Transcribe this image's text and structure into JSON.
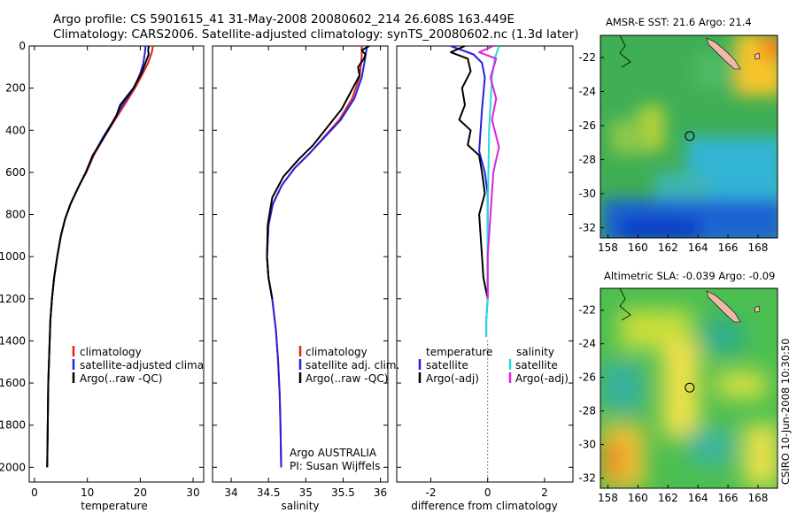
{
  "header": {
    "title_line1": "Argo profile: CS 5901615_41 31-May-2008 20080602_214 26.608S 163.449E",
    "title_line2": "Climatology: CARS2006. Satellite-adjusted climatology: synTS_20080602.nc (1.3d later)"
  },
  "footer": {
    "stamp": "CSIRO 10-Jun-2008 10:30:50"
  },
  "annotation": {
    "line1": "Argo AUSTRALIA",
    "line2": "PI: Susan Wijffels"
  },
  "colors": {
    "climatology": "#dd2222",
    "satellite": "#2222dd",
    "argo": "#000000",
    "salinity_sat": "#22dddd",
    "salinity_argo": "#dd22dd"
  },
  "chart_data": [
    {
      "type": "line",
      "xlabel": "temperature",
      "xlim": [
        -1,
        32
      ],
      "ylim": [
        0,
        2070
      ],
      "xticks": [
        0,
        10,
        20,
        30
      ],
      "yticks": [
        0,
        200,
        400,
        600,
        800,
        1000,
        1200,
        1400,
        1600,
        1800,
        2000
      ],
      "legend": {
        "placement": "bottom-left",
        "entries": [
          "climatology",
          "satellite-adjusted climatology",
          "Argo(..raw -QC)"
        ]
      },
      "series": [
        {
          "name": "climatology",
          "color": "#dd2222",
          "x": [
            22.4,
            22.2,
            21.5,
            20.5,
            19.0,
            17.0,
            15.0,
            13.0,
            11.2,
            9.8,
            8.5,
            6.8,
            5.8,
            5.0,
            4.3,
            3.7,
            3.3,
            3.0,
            2.8,
            2.6,
            2.5,
            2.4
          ],
          "y": [
            0,
            30,
            80,
            130,
            200,
            280,
            360,
            440,
            520,
            600,
            660,
            750,
            820,
            900,
            1000,
            1100,
            1200,
            1300,
            1450,
            1600,
            1800,
            2000
          ]
        },
        {
          "name": "satellite-adjusted climatology",
          "color": "#2222dd",
          "x": [
            21.0,
            20.9,
            20.6,
            20.0,
            18.8,
            16.6,
            14.8,
            12.8,
            11.1,
            9.7,
            8.5,
            6.8,
            5.8,
            5.0,
            4.3,
            3.7,
            3.3,
            3.0,
            2.8,
            2.6,
            2.5,
            2.4
          ],
          "y": [
            0,
            30,
            80,
            130,
            200,
            280,
            360,
            440,
            520,
            600,
            660,
            750,
            820,
            900,
            1000,
            1100,
            1200,
            1300,
            1450,
            1600,
            1800,
            2000
          ]
        },
        {
          "name": "Argo(..raw -QC)",
          "color": "#000000",
          "x": [
            21.6,
            21.5,
            21.6,
            21.0,
            20.2,
            18.7,
            16.2,
            15.5,
            13.0,
            11.0,
            9.7,
            8.5,
            6.8,
            5.8,
            5.0,
            4.3,
            3.7,
            3.3,
            3.0,
            2.8,
            2.6,
            2.5,
            2.4
          ],
          "y": [
            0,
            20,
            40,
            80,
            130,
            200,
            280,
            330,
            440,
            520,
            600,
            660,
            750,
            820,
            900,
            1000,
            1100,
            1200,
            1300,
            1450,
            1600,
            1800,
            2000
          ]
        }
      ]
    },
    {
      "type": "line",
      "xlabel": "salinity",
      "xlim": [
        33.75,
        36.1
      ],
      "ylim": [
        0,
        2070
      ],
      "xticks": [
        34,
        34.5,
        35,
        35.5,
        36
      ],
      "yticks": [
        0,
        200,
        400,
        600,
        800,
        1000,
        1200,
        1400,
        1600,
        1800,
        2000
      ],
      "legend": {
        "placement": "bottom-right",
        "entries": [
          "climatology",
          "satellite adj. clim.",
          "Argo(..raw -QC)"
        ]
      },
      "series": [
        {
          "name": "climatology",
          "color": "#dd2222",
          "x": [
            35.75,
            35.75,
            35.72,
            35.62,
            35.45,
            35.25,
            35.05,
            34.85,
            34.68,
            34.56,
            34.5,
            34.48,
            34.5,
            34.55,
            34.6,
            34.63,
            34.65,
            34.66,
            34.67
          ],
          "y": [
            0,
            50,
            150,
            250,
            350,
            430,
            510,
            580,
            660,
            750,
            850,
            1000,
            1100,
            1200,
            1350,
            1500,
            1650,
            1800,
            2000
          ]
        },
        {
          "name": "satellite adj. clim.",
          "color": "#2222dd",
          "x": [
            35.82,
            35.8,
            35.75,
            35.65,
            35.47,
            35.26,
            35.05,
            34.85,
            34.68,
            34.56,
            34.5,
            34.48,
            34.5,
            34.55,
            34.6,
            34.63,
            34.65,
            34.66,
            34.67
          ],
          "y": [
            0,
            50,
            150,
            250,
            350,
            430,
            510,
            580,
            660,
            750,
            850,
            1000,
            1100,
            1200,
            1350,
            1500,
            1650,
            1800,
            2000
          ]
        },
        {
          "name": "Argo(..raw -QC)",
          "color": "#000000",
          "x": [
            35.85,
            35.75,
            35.8,
            35.78,
            35.7,
            35.72,
            35.6,
            35.48,
            35.3,
            35.1,
            34.9,
            34.7,
            34.55,
            34.49,
            34.48,
            34.5,
            34.55
          ],
          "y": [
            0,
            20,
            40,
            60,
            100,
            140,
            220,
            300,
            380,
            470,
            540,
            620,
            720,
            850,
            1000,
            1100,
            1200
          ]
        }
      ]
    },
    {
      "type": "line",
      "xlabel": "difference from climatology",
      "xlim": [
        -3.2,
        3.0
      ],
      "ylim": [
        0,
        2070
      ],
      "xticks": [
        -2,
        0,
        2
      ],
      "yticks": [
        0,
        200,
        400,
        600,
        800,
        1000,
        1200,
        1400,
        1600,
        1800,
        2000
      ],
      "legend": {
        "placement": "bottom",
        "groups": [
          "temperature",
          "salinity"
        ],
        "entries": [
          "satellite",
          "Argo(-adj)",
          "satellite",
          "Argo(-adj)"
        ]
      },
      "series": [
        {
          "name": "satellite",
          "color": "#2222dd",
          "x": [
            -1.3,
            -0.5,
            -0.2,
            -0.1,
            -0.2,
            -0.3,
            -0.1,
            0.0,
            0.0,
            0.0,
            0.0,
            -0.05,
            -0.05
          ],
          "y": [
            0,
            40,
            80,
            150,
            300,
            500,
            600,
            700,
            800,
            1000,
            1200,
            1300,
            1380
          ]
        },
        {
          "name": "Argo(-adj)",
          "color": "#000000",
          "x": [
            -0.8,
            -1.3,
            -0.7,
            -0.6,
            -0.9,
            -0.8,
            -1.0,
            -0.6,
            -0.7,
            -0.3,
            -0.2,
            -0.1,
            -0.3,
            -0.2,
            -0.15,
            0.0
          ],
          "y": [
            0,
            30,
            60,
            120,
            200,
            280,
            350,
            400,
            470,
            520,
            600,
            700,
            800,
            1000,
            1100,
            1200
          ]
        },
        {
          "name": "satellite",
          "color": "#22dddd",
          "x": [
            0.4,
            0.25,
            0.15,
            0.05,
            0.0,
            0.0,
            -0.05,
            -0.05
          ],
          "y": [
            0,
            60,
            150,
            400,
            800,
            1200,
            1300,
            1380
          ]
        },
        {
          "name": "Argo(-adj)",
          "color": "#dd22dd",
          "x": [
            0.2,
            -0.3,
            0.3,
            0.1,
            0.3,
            0.15,
            0.4,
            0.2,
            0.1,
            0.0,
            0.0
          ],
          "y": [
            0,
            30,
            60,
            150,
            250,
            350,
            480,
            600,
            800,
            1000,
            1200
          ]
        }
      ]
    },
    {
      "type": "heatmap",
      "title": "AMSR-E SST: 21.6 Argo: 21.4",
      "xlim": [
        157.5,
        169.3
      ],
      "ylim": [
        -32.6,
        -20.7
      ],
      "xticks": [
        158,
        160,
        162,
        164,
        166,
        168
      ],
      "yticks": [
        -22,
        -24,
        -26,
        -28,
        -30,
        -32
      ],
      "marker": {
        "lon": 163.449,
        "lat": -26.608
      }
    },
    {
      "type": "heatmap",
      "title": "Altimetric SLA: -0.039 Argo: -0.09",
      "xlim": [
        157.5,
        169.3
      ],
      "ylim": [
        -32.6,
        -20.7
      ],
      "xticks": [
        158,
        160,
        162,
        164,
        166,
        168
      ],
      "yticks": [
        -22,
        -24,
        -26,
        -28,
        -30,
        -32
      ],
      "marker": {
        "lon": 163.449,
        "lat": -26.608
      }
    }
  ]
}
